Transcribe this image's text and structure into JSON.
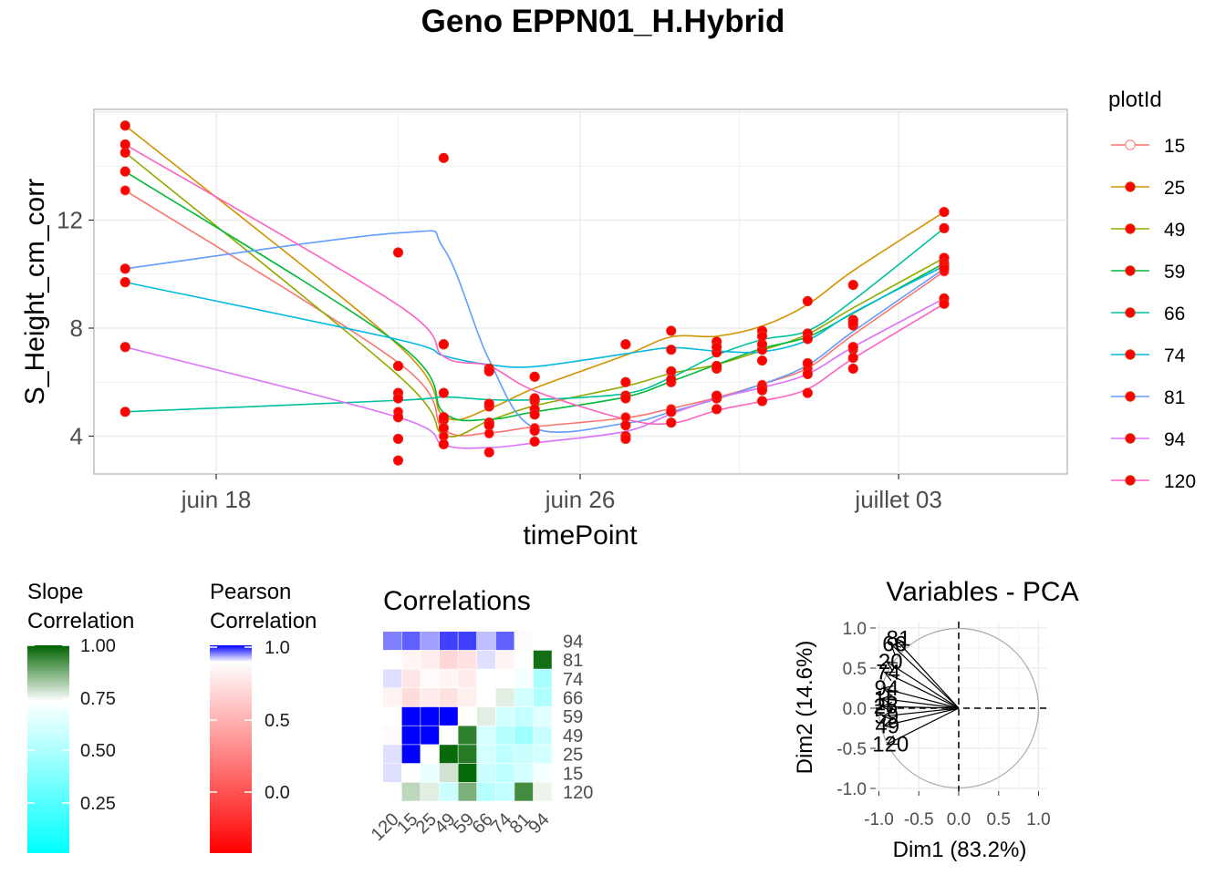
{
  "title": "Geno EPPN01_H.Hybrid",
  "colors": {
    "point": "#ff0000",
    "grid": "#ebebeb",
    "series": {
      "15": "#f8766d",
      "25": "#d39200",
      "49": "#93aa00",
      "59": "#00ba38",
      "66": "#00c19f",
      "74": "#00b9e3",
      "81": "#619cff",
      "94": "#db72fb",
      "120": "#ff61c3"
    }
  },
  "chart_data": [
    {
      "type": "line",
      "xlabel": "timePoint",
      "ylabel": "S_Height_cm_corr",
      "x_ticks": [
        "juin 18",
        "juin 26",
        "juillet 03"
      ],
      "y_ticks": [
        "4",
        "8",
        "12"
      ],
      "ylim": [
        2.6,
        16.1
      ],
      "legend_title": "plotId",
      "legend_placement": "right",
      "series": [
        {
          "name": "15",
          "points": [
            [
              "2021-06-16",
              13.1
            ],
            [
              "2021-06-22",
              4.9
            ],
            [
              "2021-06-23",
              4.0
            ],
            [
              "2021-06-24",
              4.1
            ],
            [
              "2021-06-25",
              4.3
            ],
            [
              "2021-06-27",
              4.7
            ],
            [
              "2021-06-28",
              5.0
            ],
            [
              "2021-06-29",
              5.4
            ],
            [
              "2021-06-30",
              5.9
            ],
            [
              "2021-07-01",
              6.5
            ],
            [
              "2021-07-02",
              7.2
            ],
            [
              "2021-07-04",
              10.1
            ]
          ]
        },
        {
          "name": "25",
          "points": [
            [
              "2021-06-16",
              15.5
            ],
            [
              "2021-06-22",
              4.7
            ],
            [
              "2021-06-23",
              4.6
            ],
            [
              "2021-06-24",
              5.1
            ],
            [
              "2021-06-25",
              5.3
            ],
            [
              "2021-06-27",
              7.4
            ],
            [
              "2021-06-28",
              7.9
            ],
            [
              "2021-06-29",
              7.5
            ],
            [
              "2021-06-30",
              7.9
            ],
            [
              "2021-07-01",
              9.0
            ],
            [
              "2021-07-02",
              9.6
            ],
            [
              "2021-07-04",
              12.3
            ]
          ]
        },
        {
          "name": "49",
          "points": [
            [
              "2021-06-16",
              14.5
            ],
            [
              "2021-06-22",
              3.1
            ],
            [
              "2021-06-23",
              4.3
            ],
            [
              "2021-06-24",
              4.5
            ],
            [
              "2021-06-25",
              5.0
            ],
            [
              "2021-06-27",
              6.0
            ],
            [
              "2021-06-28",
              6.4
            ],
            [
              "2021-06-29",
              6.5
            ],
            [
              "2021-06-30",
              7.2
            ],
            [
              "2021-07-01",
              7.8
            ],
            [
              "2021-07-02",
              8.3
            ],
            [
              "2021-07-04",
              10.6
            ]
          ]
        },
        {
          "name": "59",
          "points": [
            [
              "2021-06-16",
              13.8
            ],
            [
              "2021-06-22",
              5.6
            ],
            [
              "2021-06-23",
              4.7
            ],
            [
              "2021-06-24",
              4.5
            ],
            [
              "2021-06-25",
              4.8
            ],
            [
              "2021-06-27",
              5.5
            ],
            [
              "2021-06-28",
              6.0
            ],
            [
              "2021-06-29",
              6.6
            ],
            [
              "2021-06-30",
              7.4
            ],
            [
              "2021-07-01",
              7.6
            ],
            [
              "2021-07-02",
              8.1
            ],
            [
              "2021-07-04",
              10.4
            ]
          ]
        },
        {
          "name": "66",
          "points": [
            [
              "2021-06-16",
              4.9
            ],
            [
              "2021-06-22",
              5.4
            ],
            [
              "2021-06-23",
              5.6
            ],
            [
              "2021-06-24",
              5.2
            ],
            [
              "2021-06-25",
              5.4
            ],
            [
              "2021-06-27",
              5.4
            ],
            [
              "2021-06-28",
              6.1
            ],
            [
              "2021-06-29",
              7.1
            ],
            [
              "2021-06-30",
              7.7
            ],
            [
              "2021-07-01",
              7.8
            ],
            [
              "2021-07-02",
              8.3
            ],
            [
              "2021-07-04",
              11.7
            ]
          ]
        },
        {
          "name": "74",
          "points": [
            [
              "2021-06-16",
              9.7
            ],
            [
              "2021-06-22",
              6.6
            ],
            [
              "2021-06-23",
              7.4
            ],
            [
              "2021-06-24",
              6.5
            ],
            [
              "2021-06-25",
              6.2
            ],
            [
              "2021-06-27",
              7.4
            ],
            [
              "2021-06-28",
              7.2
            ],
            [
              "2021-06-29",
              7.3
            ],
            [
              "2021-06-30",
              6.8
            ],
            [
              "2021-07-01",
              7.6
            ],
            [
              "2021-07-02",
              8.2
            ],
            [
              "2021-07-04",
              10.3
            ]
          ]
        },
        {
          "name": "81",
          "points": [
            [
              "2021-06-16",
              10.2
            ],
            [
              "2021-06-22",
              10.8
            ],
            [
              "2021-06-23",
              14.3
            ],
            [
              "2021-06-24",
              4.4
            ],
            [
              "2021-06-25",
              4.2
            ],
            [
              "2021-06-27",
              4.4
            ],
            [
              "2021-06-28",
              4.9
            ],
            [
              "2021-06-29",
              5.4
            ],
            [
              "2021-06-30",
              5.8
            ],
            [
              "2021-07-01",
              6.7
            ],
            [
              "2021-07-02",
              7.3
            ],
            [
              "2021-07-04",
              10.2
            ]
          ]
        },
        {
          "name": "94",
          "points": [
            [
              "2021-06-16",
              7.3
            ],
            [
              "2021-06-22",
              3.9
            ],
            [
              "2021-06-23",
              3.7
            ],
            [
              "2021-06-24",
              3.4
            ],
            [
              "2021-06-25",
              3.8
            ],
            [
              "2021-06-27",
              4.0
            ],
            [
              "2021-06-28",
              4.9
            ],
            [
              "2021-06-29",
              5.5
            ],
            [
              "2021-06-30",
              5.7
            ],
            [
              "2021-07-01",
              6.3
            ],
            [
              "2021-07-02",
              6.9
            ],
            [
              "2021-07-04",
              9.1
            ]
          ]
        },
        {
          "name": "120",
          "points": [
            [
              "2021-06-16",
              14.8
            ],
            [
              "2021-06-22",
              6.6
            ],
            [
              "2021-06-23",
              7.4
            ],
            [
              "2021-06-24",
              6.4
            ],
            [
              "2021-06-25",
              6.2
            ],
            [
              "2021-06-27",
              3.9
            ],
            [
              "2021-06-28",
              4.5
            ],
            [
              "2021-06-29",
              5.0
            ],
            [
              "2021-06-30",
              5.3
            ],
            [
              "2021-07-01",
              5.6
            ],
            [
              "2021-07-02",
              6.5
            ],
            [
              "2021-07-04",
              8.9
            ]
          ]
        }
      ]
    },
    {
      "type": "heatmap",
      "title": "Correlations",
      "labels": [
        "120",
        "15",
        "25",
        "49",
        "59",
        "66",
        "74",
        "81",
        "94"
      ],
      "legends": [
        {
          "title": [
            "Slope",
            "Correlation"
          ],
          "ticks": [
            "1.00",
            "0.75",
            "0.50",
            "0.25"
          ]
        },
        {
          "title": [
            "Pearson",
            "Correlation"
          ],
          "ticks": [
            "1.0",
            "0.5",
            "0.0"
          ]
        }
      ],
      "pearson_lower": {
        "120": {
          "15": 0.93,
          "25": 0.93,
          "49": 0.9,
          "59": 0.92,
          "66": 0.87,
          "74": 0.93,
          "81": 0.92,
          "94": 0.96
        },
        "15": {
          "25": 1.0,
          "49": 1.0,
          "59": 1.0,
          "66": 0.78,
          "74": 0.82,
          "81": 0.88,
          "94": 0.97
        },
        "25": {
          "49": 1.0,
          "59": 1.0,
          "66": 0.84,
          "74": 0.9,
          "81": 0.85,
          "94": 0.95
        },
        "49": {
          "59": 1.0,
          "66": 0.8,
          "74": 0.88,
          "81": 0.76,
          "94": 0.98
        },
        "59": {
          "66": 0.86,
          "74": 0.84,
          "81": 0.8,
          "94": 0.98
        },
        "66": {
          "74": 0.92,
          "81": 0.93,
          "94": 0.94
        },
        "74": {
          "81": 0.88,
          "94": 0.97
        },
        "81": {
          "94": 0.9
        }
      },
      "slope_upper": {
        "120": {
          "15": 0.8,
          "25": 0.76,
          "49": 0.58,
          "59": 0.87,
          "66": 0.52,
          "74": 0.56,
          "81": 0.93,
          "94": 0.75
        },
        "15": {
          "25": 0.67,
          "49": 0.78,
          "59": 0.99,
          "66": 0.58,
          "74": 0.54,
          "81": 0.6,
          "94": 0.7
        },
        "25": {
          "49": 0.99,
          "59": 0.96,
          "66": 0.6,
          "74": 0.55,
          "81": 0.58,
          "94": 0.6
        },
        "49": {
          "59": 0.95,
          "66": 0.6,
          "74": 0.52,
          "81": 0.45,
          "94": 0.58
        },
        "59": {
          "66": 0.76,
          "74": 0.6,
          "81": 0.56,
          "94": 0.64
        },
        "66": {
          "74": 0.76,
          "81": 0.6,
          "94": 0.5
        },
        "74": {
          "81": 0.7,
          "94": 0.48
        },
        "81": {
          "94": 0.98
        }
      }
    },
    {
      "type": "scatter",
      "title": "Variables - PCA",
      "xlabel": "Dim1 (83.2%)",
      "ylabel": "Dim2 (14.6%)",
      "x_ticks": [
        "-1.0",
        "-0.5",
        "0.0",
        "0.5",
        "1.0"
      ],
      "y_ticks": [
        "1.0",
        "0.5",
        "0.0",
        "-0.5",
        "-1.0"
      ],
      "xlim": [
        -1.05,
        1.1
      ],
      "ylim": [
        -1.05,
        1.05
      ],
      "arrows": [
        {
          "label": "81",
          "x": -0.8,
          "y": 0.87
        },
        {
          "label": "66",
          "x": -0.85,
          "y": 0.8
        },
        {
          "label": "20",
          "x": -0.9,
          "y": 0.58
        },
        {
          "label": "74",
          "x": -0.93,
          "y": 0.45
        },
        {
          "label": "94",
          "x": -0.95,
          "y": 0.25
        },
        {
          "label": "15",
          "x": -0.96,
          "y": 0.12
        },
        {
          "label": "25",
          "x": -0.96,
          "y": 0.02
        },
        {
          "label": "59",
          "x": -0.95,
          "y": -0.1
        },
        {
          "label": "49",
          "x": -0.94,
          "y": -0.22
        },
        {
          "label": "120",
          "x": -0.9,
          "y": -0.45
        }
      ]
    }
  ]
}
